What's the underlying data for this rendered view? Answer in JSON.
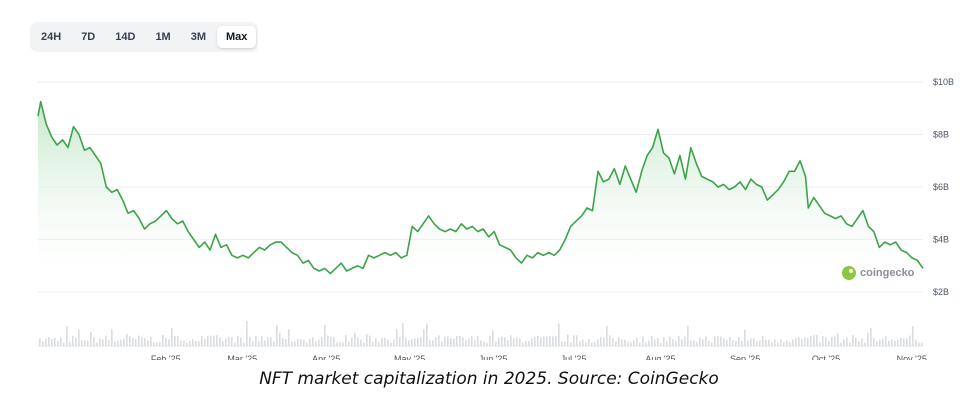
{
  "range_selector": {
    "options": [
      "24H",
      "7D",
      "14D",
      "1M",
      "3M",
      "Max"
    ],
    "selected": "Max"
  },
  "watermark": "coingecko",
  "caption": "NFT market capitalization in 2025. Source: CoinGecko",
  "colors": {
    "line": "#3da24a",
    "area_top": "#bfe5c4",
    "volume": "#d9dde2",
    "brand": "#8dc63f"
  },
  "chart_data": {
    "type": "area",
    "x_labels": [
      "Feb '25",
      "Mar '25",
      "Apr '25",
      "May '25",
      "Jun '25",
      "Jul '25",
      "Aug '25",
      "Sep '25",
      "Oct '25",
      "Nov '25"
    ],
    "y_ticks": [
      "$2B",
      "$4B",
      "$6B",
      "$8B",
      "$10B"
    ],
    "ylim": [
      2,
      10
    ],
    "x_range": [
      "2025-01-01",
      "2025-11-21"
    ],
    "grid": true,
    "series": [
      {
        "values_usd_billions": [
          [
            "2025-01-01",
            8.7
          ],
          [
            "2025-01-02",
            9.25
          ],
          [
            "2025-01-04",
            8.4
          ],
          [
            "2025-01-06",
            7.9
          ],
          [
            "2025-01-08",
            7.6
          ],
          [
            "2025-01-10",
            7.8
          ],
          [
            "2025-01-12",
            7.5
          ],
          [
            "2025-01-14",
            8.3
          ],
          [
            "2025-01-16",
            8.0
          ],
          [
            "2025-01-18",
            7.4
          ],
          [
            "2025-01-20",
            7.5
          ],
          [
            "2025-01-22",
            7.2
          ],
          [
            "2025-01-24",
            6.9
          ],
          [
            "2025-01-26",
            6.0
          ],
          [
            "2025-01-28",
            5.8
          ],
          [
            "2025-01-30",
            5.9
          ],
          [
            "2025-02-01",
            5.5
          ],
          [
            "2025-02-03",
            5.0
          ],
          [
            "2025-02-05",
            5.1
          ],
          [
            "2025-02-07",
            4.8
          ],
          [
            "2025-02-09",
            4.4
          ],
          [
            "2025-02-11",
            4.6
          ],
          [
            "2025-02-13",
            4.7
          ],
          [
            "2025-02-15",
            4.9
          ],
          [
            "2025-02-17",
            5.1
          ],
          [
            "2025-02-19",
            4.8
          ],
          [
            "2025-02-21",
            4.6
          ],
          [
            "2025-02-23",
            4.7
          ],
          [
            "2025-02-25",
            4.3
          ],
          [
            "2025-02-27",
            4.0
          ],
          [
            "2025-03-01",
            3.7
          ],
          [
            "2025-03-03",
            3.9
          ],
          [
            "2025-03-05",
            3.6
          ],
          [
            "2025-03-07",
            4.2
          ],
          [
            "2025-03-09",
            3.7
          ],
          [
            "2025-03-11",
            3.8
          ],
          [
            "2025-03-13",
            3.4
          ],
          [
            "2025-03-15",
            3.3
          ],
          [
            "2025-03-17",
            3.4
          ],
          [
            "2025-03-19",
            3.3
          ],
          [
            "2025-03-21",
            3.5
          ],
          [
            "2025-03-23",
            3.7
          ],
          [
            "2025-03-25",
            3.6
          ],
          [
            "2025-03-27",
            3.8
          ],
          [
            "2025-03-29",
            3.9
          ],
          [
            "2025-03-31",
            3.9
          ],
          [
            "2025-04-02",
            3.7
          ],
          [
            "2025-04-04",
            3.5
          ],
          [
            "2025-04-06",
            3.4
          ],
          [
            "2025-04-08",
            3.1
          ],
          [
            "2025-04-10",
            3.2
          ],
          [
            "2025-04-12",
            2.9
          ],
          [
            "2025-04-14",
            2.8
          ],
          [
            "2025-04-16",
            2.9
          ],
          [
            "2025-04-18",
            2.7
          ],
          [
            "2025-04-20",
            2.9
          ],
          [
            "2025-04-22",
            3.1
          ],
          [
            "2025-04-24",
            2.8
          ],
          [
            "2025-04-26",
            2.9
          ],
          [
            "2025-04-28",
            3.0
          ],
          [
            "2025-04-30",
            2.9
          ],
          [
            "2025-05-02",
            3.4
          ],
          [
            "2025-05-04",
            3.3
          ],
          [
            "2025-05-06",
            3.4
          ],
          [
            "2025-05-08",
            3.5
          ],
          [
            "2025-05-10",
            3.4
          ],
          [
            "2025-05-12",
            3.5
          ],
          [
            "2025-05-14",
            3.3
          ],
          [
            "2025-05-16",
            3.4
          ],
          [
            "2025-05-18",
            4.5
          ],
          [
            "2025-05-20",
            4.3
          ],
          [
            "2025-05-22",
            4.6
          ],
          [
            "2025-05-24",
            4.9
          ],
          [
            "2025-05-26",
            4.6
          ],
          [
            "2025-05-28",
            4.4
          ],
          [
            "2025-05-30",
            4.3
          ],
          [
            "2025-06-01",
            4.4
          ],
          [
            "2025-06-03",
            4.3
          ],
          [
            "2025-06-05",
            4.6
          ],
          [
            "2025-06-07",
            4.4
          ],
          [
            "2025-06-09",
            4.5
          ],
          [
            "2025-06-11",
            4.3
          ],
          [
            "2025-06-13",
            4.4
          ],
          [
            "2025-06-15",
            4.1
          ],
          [
            "2025-06-17",
            4.3
          ],
          [
            "2025-06-19",
            3.8
          ],
          [
            "2025-06-21",
            3.7
          ],
          [
            "2025-06-23",
            3.6
          ],
          [
            "2025-06-25",
            3.3
          ],
          [
            "2025-06-27",
            3.1
          ],
          [
            "2025-06-29",
            3.4
          ],
          [
            "2025-07-01",
            3.3
          ],
          [
            "2025-07-03",
            3.5
          ],
          [
            "2025-07-05",
            3.4
          ],
          [
            "2025-07-07",
            3.5
          ],
          [
            "2025-07-09",
            3.4
          ],
          [
            "2025-07-11",
            3.6
          ],
          [
            "2025-07-13",
            4.0
          ],
          [
            "2025-07-15",
            4.5
          ],
          [
            "2025-07-17",
            4.7
          ],
          [
            "2025-07-19",
            4.9
          ],
          [
            "2025-07-21",
            5.2
          ],
          [
            "2025-07-23",
            5.1
          ],
          [
            "2025-07-25",
            6.6
          ],
          [
            "2025-07-27",
            6.2
          ],
          [
            "2025-07-29",
            6.3
          ],
          [
            "2025-07-31",
            6.7
          ],
          [
            "2025-08-02",
            6.1
          ],
          [
            "2025-08-04",
            6.8
          ],
          [
            "2025-08-06",
            6.3
          ],
          [
            "2025-08-08",
            5.8
          ],
          [
            "2025-08-10",
            6.6
          ],
          [
            "2025-08-12",
            7.2
          ],
          [
            "2025-08-14",
            7.5
          ],
          [
            "2025-08-16",
            8.2
          ],
          [
            "2025-08-18",
            7.3
          ],
          [
            "2025-08-20",
            7.1
          ],
          [
            "2025-08-22",
            6.5
          ],
          [
            "2025-08-24",
            7.2
          ],
          [
            "2025-08-26",
            6.3
          ],
          [
            "2025-08-28",
            7.5
          ],
          [
            "2025-08-30",
            6.9
          ],
          [
            "2025-09-01",
            6.4
          ],
          [
            "2025-09-03",
            6.3
          ],
          [
            "2025-09-05",
            6.2
          ],
          [
            "2025-09-07",
            6.0
          ],
          [
            "2025-09-09",
            6.1
          ],
          [
            "2025-09-11",
            5.9
          ],
          [
            "2025-09-13",
            6.0
          ],
          [
            "2025-09-15",
            6.2
          ],
          [
            "2025-09-17",
            5.9
          ],
          [
            "2025-09-19",
            6.3
          ],
          [
            "2025-09-21",
            6.1
          ],
          [
            "2025-09-23",
            6.0
          ],
          [
            "2025-09-25",
            5.5
          ],
          [
            "2025-09-27",
            5.7
          ],
          [
            "2025-09-29",
            5.9
          ],
          [
            "2025-10-01",
            6.2
          ],
          [
            "2025-10-03",
            6.6
          ],
          [
            "2025-10-05",
            6.6
          ],
          [
            "2025-10-07",
            7.0
          ],
          [
            "2025-10-09",
            6.4
          ],
          [
            "2025-10-10",
            5.2
          ],
          [
            "2025-10-12",
            5.6
          ],
          [
            "2025-10-14",
            5.3
          ],
          [
            "2025-10-16",
            5.0
          ],
          [
            "2025-10-18",
            4.9
          ],
          [
            "2025-10-20",
            4.8
          ],
          [
            "2025-10-22",
            4.9
          ],
          [
            "2025-10-24",
            4.6
          ],
          [
            "2025-10-26",
            4.5
          ],
          [
            "2025-10-28",
            4.8
          ],
          [
            "2025-10-30",
            5.1
          ],
          [
            "2025-11-01",
            4.5
          ],
          [
            "2025-11-03",
            4.3
          ],
          [
            "2025-11-05",
            3.7
          ],
          [
            "2025-11-07",
            3.9
          ],
          [
            "2025-11-09",
            3.8
          ],
          [
            "2025-11-11",
            3.9
          ],
          [
            "2025-11-13",
            3.6
          ],
          [
            "2025-11-15",
            3.5
          ],
          [
            "2025-11-17",
            3.3
          ],
          [
            "2025-11-19",
            3.2
          ],
          [
            "2025-11-21",
            2.9
          ]
        ]
      }
    ]
  }
}
